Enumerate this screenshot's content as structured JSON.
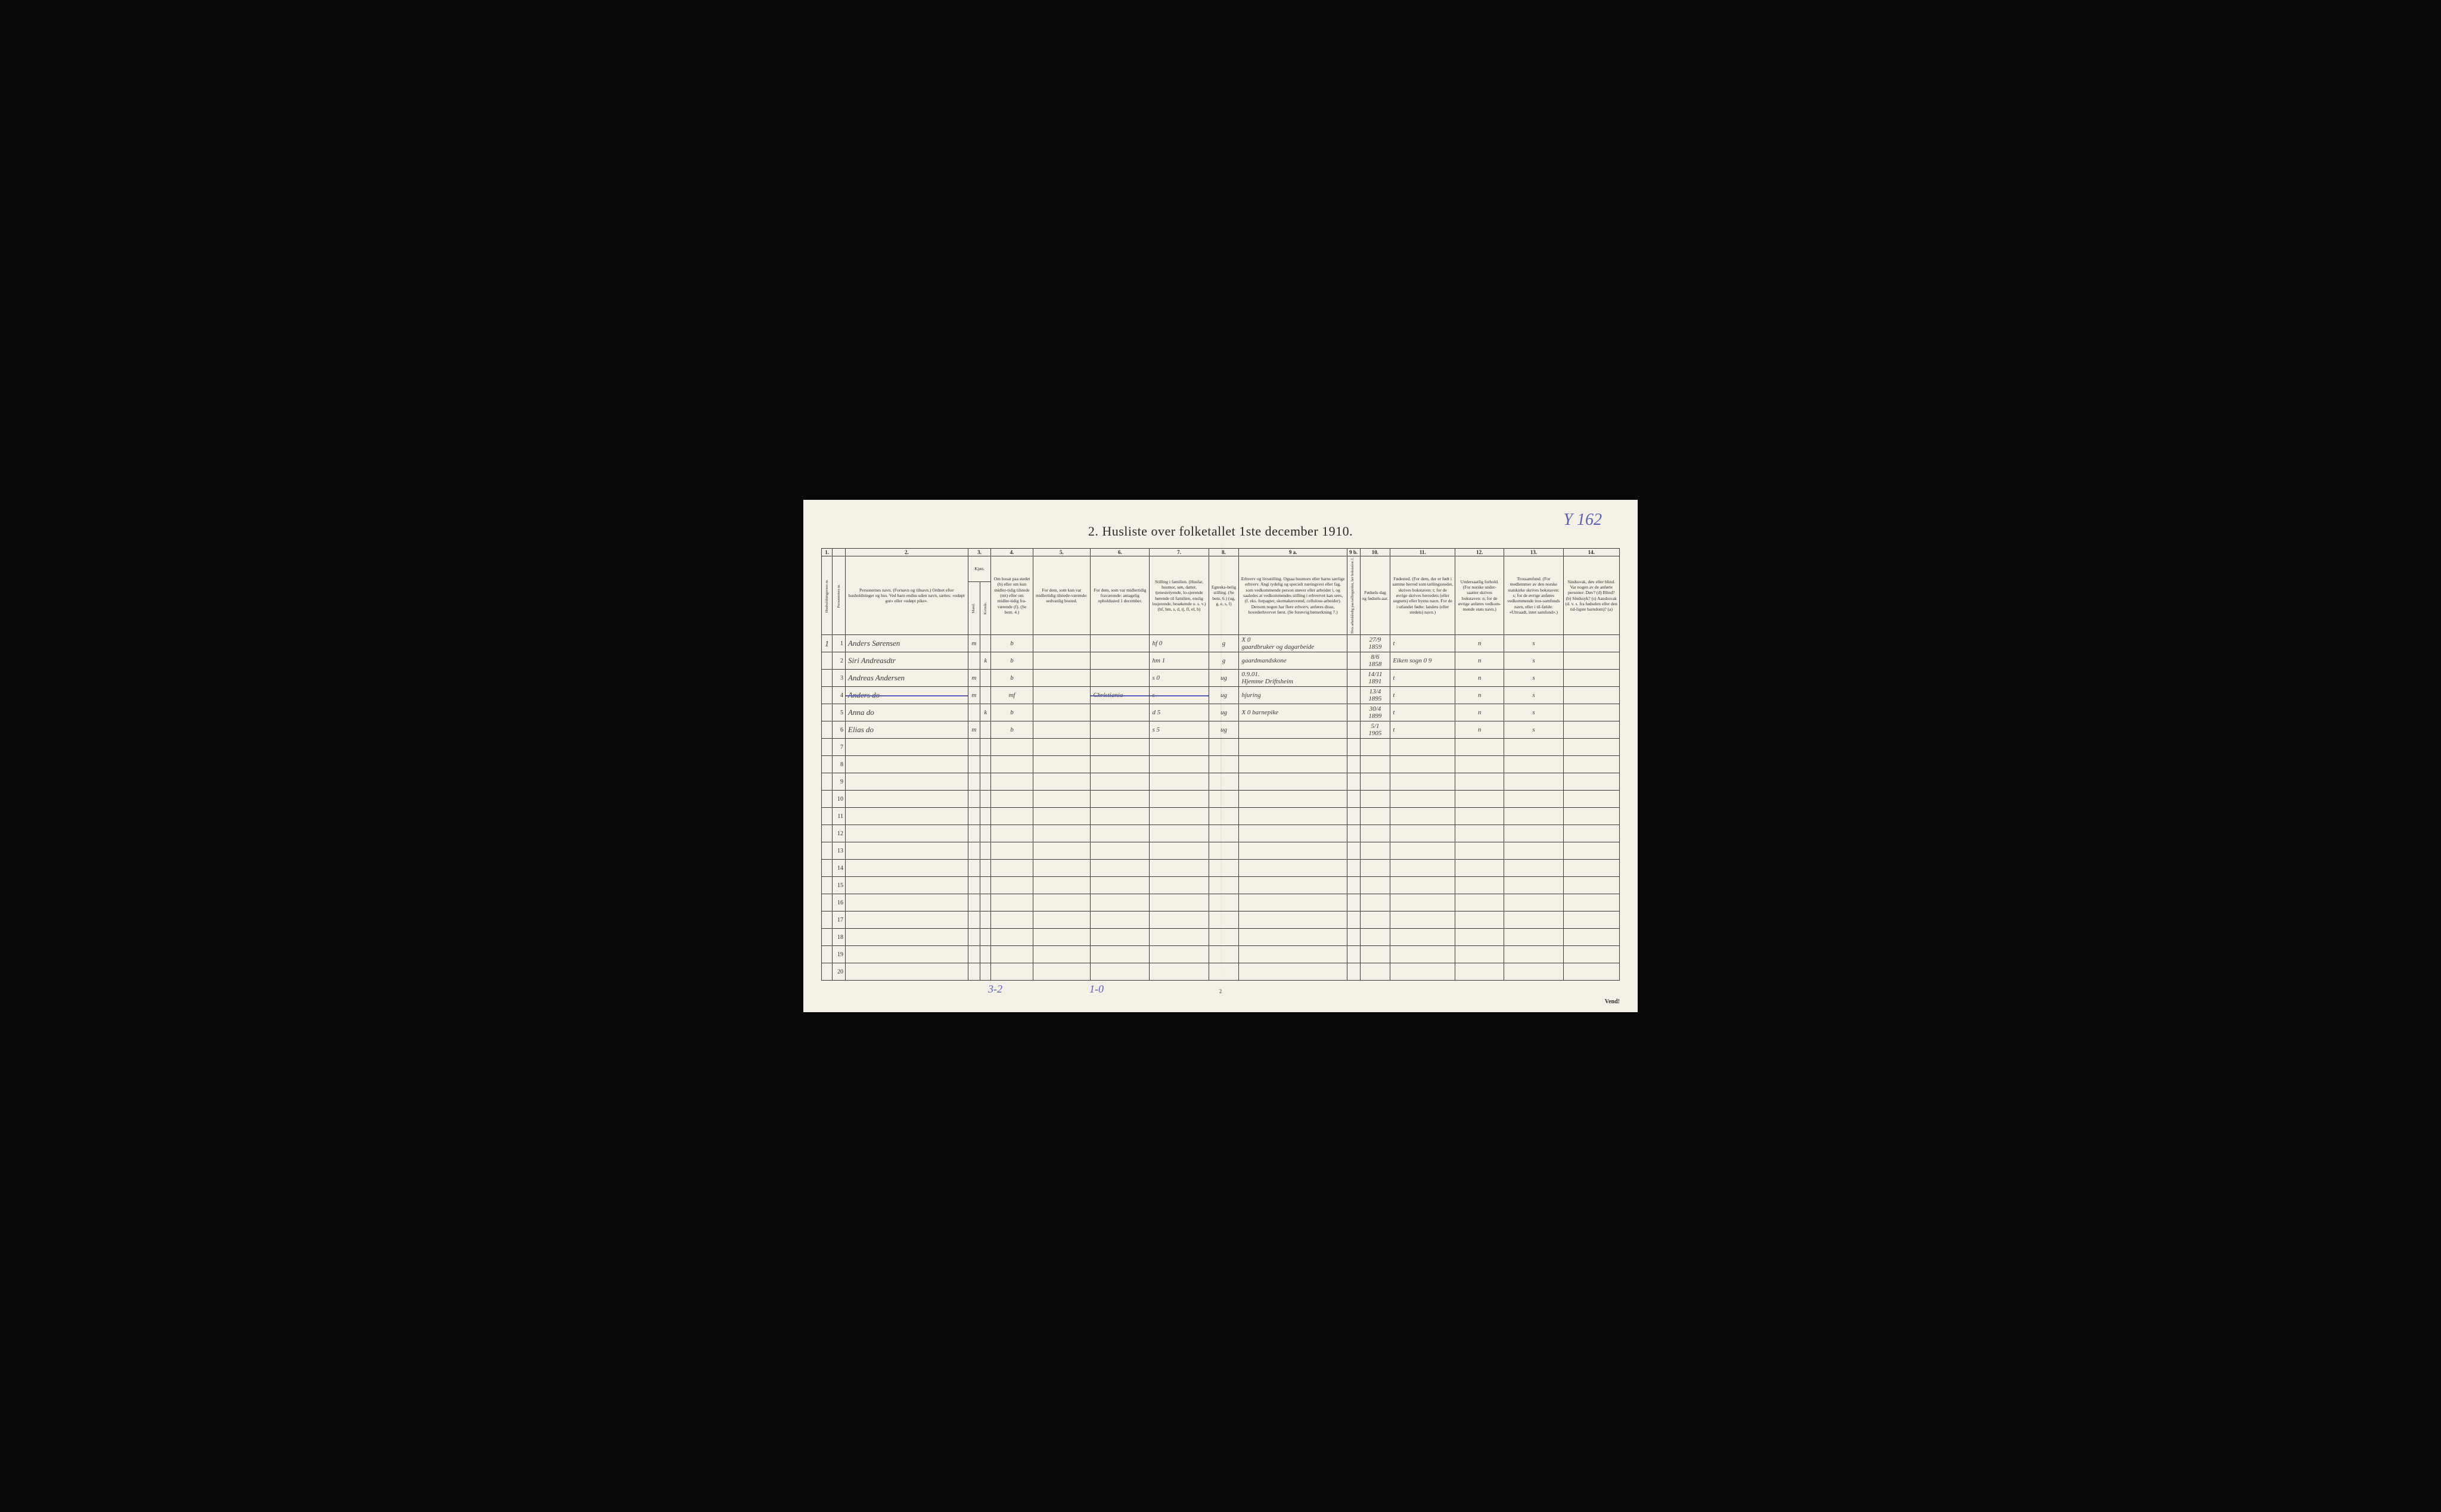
{
  "annotation_top": "Y 162",
  "title": "2.  Husliste over folketallet 1ste december 1910.",
  "column_numbers": [
    "1.",
    "",
    "2.",
    "3.",
    "",
    "4.",
    "5.",
    "6.",
    "7.",
    "8.",
    "9 a.",
    "9 b.",
    "10.",
    "11.",
    "12.",
    "13.",
    "14."
  ],
  "headers": {
    "c1": "Husholdningernes nr.",
    "c1b": "Personernes nr.",
    "c2": "Personernes navn.\n(Fornavn og tilnavn.)\nOrdnet efter husholdninger og hus.\nVed barn endnu uden navn, sættes: «udøpt gut» eller «udøpt pike».",
    "c3": "Kjøn.",
    "c3m": "Mand.",
    "c3k": "Kvinde.",
    "c3mk": "m.  k.",
    "c4": "Om bosat paa stedet (b) eller om kun midler-tidig tilstede (mt) eller om midler-tidig fra-værende (f).\n(Se bem. 4.)",
    "c5": "For dem, som kun var midlertidig tilstede-værende:\nsedvanlig bosted.",
    "c6": "For dem, som var midlertidig fraværende:\nantagelig opholdssted 1 december.",
    "c7": "Stilling i familien.\n(Husfar, husmor, søn, datter, tjenestetyende, lo-sjerende hørende til familien, enslig losjerende, besøkende o. s. v.)\n(hf, hm, s, d, tj, fl, el, b)",
    "c8": "Egteska-belig stilling.\n(Se bem. 6.)\n(ug, g, e, s, f)",
    "c9a": "Erhverv og livsstilling.\nOgsaa husmors eller barns særlige erhverv. Angi tydelig og specielt næringsvei eller fag, som vedkommende person utøver eller arbeider i, og saaledes at vedkommendes stilling i erhvervet kan sees, (f. eks. forpagter, skomakersvend, cellulose-arbeider). Dersom nogen har flere erhverv, anføres disse, hovederhvervet først.\n(Se forøvrig bemerkning 7.)",
    "c9b": "Hvis arbeidsledig paa tællingstiden, her bokstaven: l.",
    "c10": "Fødsels-dag og fødsels-aar.",
    "c11": "Fødested.\n(For dem, der er født i samme herred som tællingsstedet, skrives bokstaven: t; for de øvrige skrives herredets (eller sognets) eller byens navn. For de i utlandet fødte: landets (eller stedets) navn.)",
    "c12": "Undersaatlig forhold.\n(For norske under-saatter skrives bokstaven: n; for de øvrige anføres vedkom-mende stats navn.)",
    "c13": "Trossamfund.\n(For medlemmer av den norske statskirke skrives bokstaven: s; for de øvrige anføres vedkommende tros-samfunds navn, eller i til-fælde: «Uttraadt, intet samfund».)",
    "c14": "Sindssvak, døv eller blind.\nVar nogen av de anførte personer:\nDøv?      (d)\nBlind?    (b)\nSindssyk? (s)\nAandssvak (d. v. s. fra fødselen eller den tid-ligste barndom)? (a)"
  },
  "rows": [
    {
      "n": "1",
      "name": "Anders Sørensen",
      "m": "m",
      "k": "",
      "b": "b",
      "c5": "",
      "c6": "",
      "c7": "hf           0",
      "c8": "g",
      "c9a": "X 0\ngaardbruker og dagarbeide",
      "c10": "27/9\n1859",
      "c11": "t",
      "c12": "n",
      "c13": "s"
    },
    {
      "n": "2",
      "name": "Siri Andreasdtr",
      "m": "",
      "k": "k",
      "b": "b",
      "c5": "",
      "c6": "",
      "c7": "hm          1",
      "c8": "g",
      "c9a": "gaardmandskone",
      "c10": "8/6\n1858",
      "c11": "Eiken sogn  0 9",
      "c12": "n",
      "c13": "s"
    },
    {
      "n": "3",
      "name": "Andreas Andersen",
      "m": "m",
      "k": "",
      "b": "b",
      "c5": "",
      "c6": "",
      "c7": "s            0",
      "c8": "ug",
      "c9a": "0.9.01.\nHjemme Driftsheim",
      "c10": "14/11\n1891",
      "c11": "t",
      "c12": "n",
      "c13": "s"
    },
    {
      "n": "4",
      "name": "Anders     do",
      "m": "m",
      "k": "",
      "b": "mf",
      "c5": "",
      "c6": "Christiania",
      "c7": "s",
      "c8": "ug",
      "c9a": "hjuring",
      "c10": "13/4\n1895",
      "c11": "t",
      "c12": "n",
      "c13": "s",
      "strike": true
    },
    {
      "n": "5",
      "name": "Anna      do",
      "m": "",
      "k": "k",
      "b": "b",
      "c5": "",
      "c6": "",
      "c7": "d           5",
      "c8": "ug",
      "c9a": "X 0   barnepike",
      "c10": "30/4\n1899",
      "c11": "t",
      "c12": "n",
      "c13": "s"
    },
    {
      "n": "6",
      "name": "Elias     do",
      "m": "m",
      "k": "",
      "b": "b",
      "c5": "",
      "c6": "",
      "c7": "s           5",
      "c8": "ug",
      "c9a": "",
      "c10": "5/1\n1905",
      "c11": "t",
      "c12": "n",
      "c13": "s"
    },
    {
      "n": "7"
    },
    {
      "n": "8"
    },
    {
      "n": "9"
    },
    {
      "n": "10"
    },
    {
      "n": "11"
    },
    {
      "n": "12"
    },
    {
      "n": "13"
    },
    {
      "n": "14"
    },
    {
      "n": "15"
    },
    {
      "n": "16"
    },
    {
      "n": "17"
    },
    {
      "n": "18"
    },
    {
      "n": "19"
    },
    {
      "n": "20"
    }
  ],
  "outside_num": "1",
  "bottom_left": "3-2",
  "bottom_mid": "1-0",
  "page_num": "2",
  "vend": "Vend!",
  "colors": {
    "paper": "#f4f0e6",
    "ink": "#2a2a2a",
    "handwriting": "#3a3a3a",
    "purple": "#5a5fb8",
    "border": "#3a3a3a",
    "outer": "#0a0a0a"
  }
}
